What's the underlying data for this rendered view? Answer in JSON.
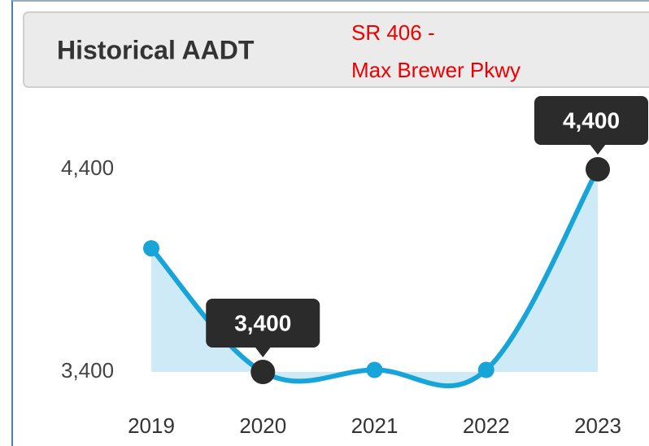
{
  "chart_data": {
    "type": "line",
    "title": "Historical AADT",
    "annotations": [
      "SR 406 -",
      "Max  Brewer Pkwy"
    ],
    "categories": [
      "2019",
      "2020",
      "2021",
      "2022",
      "2023"
    ],
    "series": [
      {
        "name": "AADT",
        "color": "#17a4d8",
        "values": [
          4010,
          3400,
          3410,
          3410,
          4400
        ]
      }
    ],
    "value_labels": [
      null,
      "3,400",
      null,
      null,
      "4,400"
    ],
    "ylim": [
      3400,
      4400
    ],
    "yticks": [
      {
        "value": 3400,
        "label": "3,400"
      },
      {
        "value": 4400,
        "label": "4,400"
      }
    ],
    "area_color": "#cdeaf6",
    "highlight_color": "#2b2b2b"
  }
}
